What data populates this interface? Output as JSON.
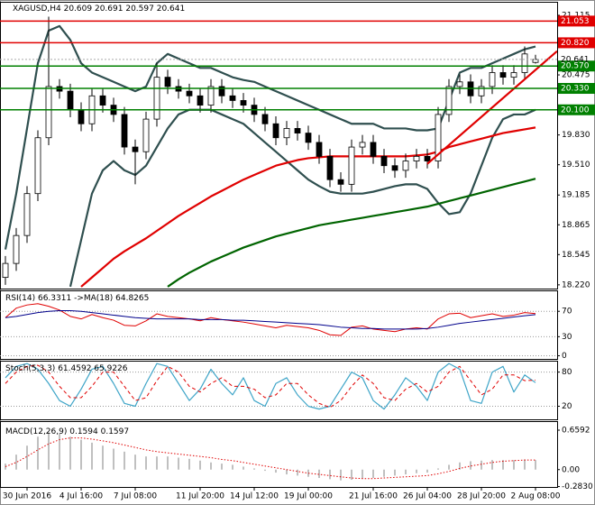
{
  "chart_data": [
    {
      "type": "candlestick",
      "title": "XAGUSD,H4",
      "categories": [
        null,
        null,
        "30 Jun 2016",
        null,
        null,
        null,
        null,
        "4 Jul 16:00",
        null,
        null,
        null,
        null,
        "7 Jul 08:00",
        null,
        null,
        null,
        null,
        null,
        "11 Jul 20:00",
        null,
        null,
        null,
        null,
        "14 Jul 12:00",
        null,
        null,
        null,
        null,
        "19 Jul 00:00",
        null,
        null,
        null,
        null,
        null,
        "21 Jul 16:00",
        null,
        null,
        null,
        null,
        "26 Jul 04:00",
        null,
        null,
        null,
        null,
        "28 Jul 20:00",
        null,
        null,
        null,
        null,
        "2 Aug 08:00"
      ],
      "open": [
        18.3,
        18.45,
        18.75,
        19.2,
        19.8,
        20.35,
        20.3,
        20.1,
        19.95,
        20.25,
        20.15,
        20.05,
        19.7,
        19.65,
        20.0,
        20.45,
        20.35,
        20.3,
        20.25,
        20.15,
        20.35,
        20.25,
        20.2,
        20.15,
        20.05,
        19.95,
        19.8,
        19.9,
        19.85,
        19.75,
        19.6,
        19.35,
        19.3,
        19.7,
        19.75,
        19.6,
        19.5,
        19.45,
        19.55,
        19.6,
        19.55,
        20.05,
        20.35,
        20.4,
        20.25,
        20.35,
        20.5,
        20.45,
        20.5,
        20.609
      ],
      "high": [
        18.53,
        18.83,
        19.28,
        19.88,
        21.1,
        20.43,
        20.38,
        20.18,
        20.33,
        20.33,
        20.23,
        20.13,
        19.78,
        20.08,
        20.6,
        20.53,
        20.43,
        20.38,
        20.33,
        20.43,
        20.43,
        20.33,
        20.28,
        20.23,
        20.13,
        20.03,
        19.98,
        19.98,
        19.93,
        19.83,
        19.68,
        19.43,
        19.78,
        19.83,
        19.83,
        19.68,
        19.58,
        19.63,
        19.68,
        19.68,
        20.13,
        20.43,
        20.48,
        20.48,
        20.43,
        20.58,
        20.58,
        20.58,
        20.78,
        20.691
      ],
      "low": [
        18.22,
        18.37,
        18.67,
        19.12,
        19.72,
        20.22,
        20.02,
        19.87,
        19.87,
        20.07,
        19.97,
        19.62,
        19.3,
        19.57,
        19.92,
        20.27,
        20.22,
        20.17,
        20.07,
        20.07,
        20.17,
        20.12,
        20.07,
        19.97,
        19.87,
        19.72,
        19.72,
        19.77,
        19.67,
        19.52,
        19.27,
        19.22,
        19.22,
        19.62,
        19.52,
        19.42,
        19.37,
        19.37,
        19.47,
        19.47,
        19.47,
        19.97,
        20.27,
        20.17,
        20.17,
        20.27,
        20.37,
        20.37,
        20.42,
        20.597
      ],
      "close": [
        18.45,
        18.75,
        19.2,
        19.8,
        20.35,
        20.3,
        20.1,
        19.95,
        20.25,
        20.15,
        20.05,
        19.7,
        19.65,
        20.0,
        20.45,
        20.35,
        20.3,
        20.25,
        20.15,
        20.35,
        20.25,
        20.2,
        20.15,
        20.05,
        19.95,
        19.8,
        19.9,
        19.85,
        19.75,
        19.6,
        19.35,
        19.3,
        19.7,
        19.75,
        19.6,
        19.5,
        19.45,
        19.55,
        19.6,
        19.55,
        20.05,
        20.35,
        20.4,
        20.25,
        20.35,
        20.5,
        20.45,
        20.5,
        20.7,
        20.641
      ],
      "ylim": [
        18.18,
        21.26
      ],
      "yticks": [
        21.115,
        20.475,
        {
          "value": 19.83,
          "label": "19.830"
        },
        {
          "value": 19.51,
          "label": "19.510"
        },
        19.185,
        18.865,
        18.545,
        {
          "value": 18.22,
          "label": "18.220"
        }
      ],
      "series": [
        {
          "type": "line",
          "color": "#2f4f4f",
          "width": 2.2,
          "values": [
            18.6,
            19.2,
            19.9,
            20.6,
            20.95,
            21.0,
            20.85,
            20.6,
            20.5,
            20.45,
            20.4,
            20.35,
            20.3,
            20.35,
            20.6,
            20.7,
            20.65,
            20.6,
            20.55,
            20.55,
            20.5,
            20.45,
            20.42,
            20.4,
            20.35,
            20.3,
            20.25,
            20.2,
            20.15,
            20.1,
            20.05,
            20.0,
            19.95,
            19.95,
            19.95,
            19.9,
            19.9,
            19.9,
            19.88,
            19.88,
            19.9,
            20.2,
            20.5,
            20.55,
            20.55,
            20.6,
            20.65,
            20.7,
            20.75,
            20.78
          ]
        },
        {
          "type": "line",
          "color": "#2f4f4f",
          "width": 2.2,
          "values": [
            null,
            null,
            null,
            null,
            null,
            null,
            18.2,
            18.7,
            19.2,
            19.45,
            19.55,
            19.45,
            19.4,
            19.5,
            19.7,
            19.9,
            20.05,
            20.1,
            20.1,
            20.1,
            20.05,
            20.0,
            19.95,
            19.85,
            19.75,
            19.65,
            19.55,
            19.45,
            19.35,
            19.28,
            19.22,
            19.2,
            19.2,
            19.2,
            19.22,
            19.25,
            19.28,
            19.3,
            19.3,
            19.25,
            19.1,
            18.98,
            19.0,
            19.2,
            19.5,
            19.8,
            20.0,
            20.05,
            20.05,
            20.1
          ]
        },
        {
          "type": "line",
          "color": "#e00000",
          "width": 2.2,
          "values": [
            null,
            null,
            null,
            null,
            null,
            null,
            null,
            18.2,
            18.3,
            18.4,
            18.5,
            18.58,
            18.65,
            18.72,
            18.8,
            18.88,
            18.96,
            19.03,
            19.1,
            19.17,
            19.23,
            19.29,
            19.35,
            19.4,
            19.45,
            19.5,
            19.53,
            19.56,
            19.58,
            19.59,
            19.6,
            19.6,
            19.6,
            19.6,
            19.6,
            19.6,
            19.6,
            19.6,
            19.61,
            19.62,
            19.65,
            19.7,
            19.73,
            19.76,
            19.79,
            19.82,
            19.85,
            19.87,
            19.89,
            19.91
          ]
        },
        {
          "type": "line",
          "color": "#006400",
          "width": 2.2,
          "values": [
            null,
            null,
            null,
            null,
            null,
            null,
            null,
            null,
            null,
            null,
            null,
            null,
            null,
            null,
            null,
            18.2,
            18.28,
            18.35,
            18.41,
            18.47,
            18.52,
            18.57,
            18.62,
            18.66,
            18.7,
            18.74,
            18.77,
            18.8,
            18.83,
            18.86,
            18.88,
            18.9,
            18.92,
            18.94,
            18.96,
            18.98,
            19.0,
            19.02,
            19.04,
            19.06,
            19.09,
            19.12,
            19.15,
            19.18,
            19.21,
            19.24,
            19.27,
            19.3,
            19.33,
            19.36
          ]
        }
      ],
      "trendlines": [
        {
          "color": "#e00000",
          "x": [
            39,
            51
          ],
          "values": [
            19.52,
            20.73
          ]
        }
      ],
      "levels": [
        {
          "value": 21.053,
          "color": "#e00000"
        },
        {
          "value": 20.82,
          "label": "20.820",
          "color": "#e00000"
        },
        {
          "value": 20.57,
          "label": "20.570",
          "color": "#008000"
        },
        {
          "value": 20.33,
          "label": "20.330",
          "color": "#008000"
        },
        {
          "value": 20.1,
          "label": "20.100",
          "color": "#008000"
        }
      ]
    },
    {
      "type": "line",
      "ylim": [
        -5,
        103
      ],
      "yticks": [
        70,
        30,
        0
      ],
      "grid": true,
      "series": [
        {
          "name": "RSI(14)",
          "type": "line",
          "color": "#e00000",
          "width": 1,
          "values": [
            60,
            75,
            80,
            82,
            78,
            72,
            62,
            58,
            65,
            60,
            56,
            48,
            47,
            55,
            66,
            62,
            60,
            58,
            55,
            60,
            57,
            55,
            53,
            50,
            47,
            44,
            48,
            46,
            44,
            40,
            33,
            32,
            45,
            47,
            42,
            40,
            38,
            42,
            44,
            42,
            58,
            66,
            67,
            60,
            63,
            66,
            62,
            64,
            68,
            66.3311
          ]
        },
        {
          "name": "->MA(18)",
          "type": "line",
          "color": "#00008b",
          "width": 1,
          "values": [
            60,
            62,
            65,
            68,
            70,
            71,
            71,
            70,
            68,
            66,
            64,
            62,
            60,
            59,
            58,
            58,
            58,
            58,
            57,
            57,
            57,
            56,
            56,
            55,
            54,
            53,
            52,
            51,
            50,
            49,
            47,
            45,
            44,
            43,
            43,
            42,
            42,
            42,
            42,
            43,
            45,
            48,
            51,
            53,
            55,
            57,
            59,
            61,
            63,
            64.8265
          ]
        }
      ]
    },
    {
      "type": "line",
      "ylim": [
        -3,
        100
      ],
      "yticks": [
        80,
        20
      ],
      "grid": true,
      "series": [
        {
          "name": "Stoch(5,3,3)",
          "type": "line",
          "color": "#3fa5c8",
          "width": 1.2,
          "values": [
            70,
            90,
            95,
            85,
            60,
            30,
            20,
            50,
            85,
            90,
            60,
            25,
            20,
            60,
            95,
            90,
            60,
            30,
            50,
            85,
            60,
            40,
            70,
            30,
            20,
            60,
            70,
            40,
            20,
            15,
            20,
            50,
            80,
            70,
            30,
            15,
            40,
            70,
            55,
            30,
            80,
            95,
            85,
            30,
            25,
            80,
            90,
            45,
            75,
            61.4592
          ]
        },
        {
          "type": "line",
          "color": "#e00000",
          "width": 1,
          "style": "dashed",
          "values": [
            60,
            80,
            90,
            92,
            80,
            55,
            35,
            35,
            55,
            80,
            80,
            55,
            30,
            35,
            65,
            90,
            80,
            55,
            45,
            60,
            70,
            55,
            55,
            50,
            35,
            40,
            60,
            60,
            40,
            25,
            18,
            30,
            55,
            75,
            60,
            35,
            30,
            50,
            60,
            45,
            55,
            80,
            90,
            65,
            40,
            50,
            75,
            75,
            65,
            65.9226
          ]
        }
      ]
    },
    {
      "type": "bar",
      "ylim": [
        -0.29,
        0.81
      ],
      "yticks": [
        0.6592,
        {
          "value": 0,
          "label": "0.00"
        },
        {
          "value": -0.283,
          "label": "-0.2830"
        }
      ],
      "series": [
        {
          "name": "MACD(12,26,9)",
          "type": "bar",
          "color": "#c0c0c0",
          "values": [
            0.1,
            0.25,
            0.4,
            0.55,
            0.62,
            0.6,
            0.55,
            0.5,
            0.45,
            0.4,
            0.35,
            0.3,
            0.25,
            0.22,
            0.22,
            0.22,
            0.2,
            0.18,
            0.15,
            0.12,
            0.1,
            0.08,
            0.05,
            0.02,
            -0.02,
            -0.05,
            -0.08,
            -0.1,
            -0.12,
            -0.14,
            -0.16,
            -0.18,
            -0.17,
            -0.15,
            -0.14,
            -0.12,
            -0.1,
            -0.08,
            -0.06,
            -0.05,
            0.02,
            0.08,
            0.12,
            0.14,
            0.15,
            0.16,
            0.16,
            0.16,
            0.17,
            0.1594
          ]
        },
        {
          "type": "line",
          "color": "#e00000",
          "width": 1,
          "style": "dotted",
          "values": [
            0.05,
            0.12,
            0.22,
            0.33,
            0.43,
            0.5,
            0.53,
            0.53,
            0.51,
            0.48,
            0.45,
            0.41,
            0.37,
            0.33,
            0.3,
            0.28,
            0.26,
            0.24,
            0.22,
            0.2,
            0.17,
            0.15,
            0.12,
            0.09,
            0.06,
            0.03,
            0.0,
            -0.03,
            -0.06,
            -0.08,
            -0.1,
            -0.12,
            -0.14,
            -0.15,
            -0.15,
            -0.14,
            -0.13,
            -0.12,
            -0.11,
            -0.1,
            -0.07,
            -0.03,
            0.02,
            0.06,
            0.09,
            0.12,
            0.14,
            0.15,
            0.16,
            0.1597
          ]
        }
      ]
    }
  ]
}
